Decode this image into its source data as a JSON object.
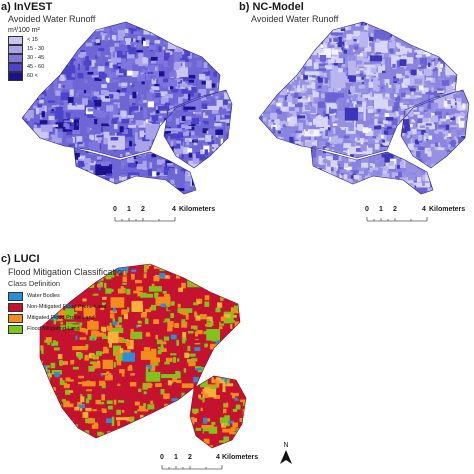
{
  "panel_a": {
    "letter": "a)",
    "title": "InVEST",
    "subtitle": "Avoided Water Runoff",
    "legend": {
      "unit": "m³/100 m²",
      "items": [
        {
          "label": "< 15",
          "color": "#c9c6f4"
        },
        {
          "label": "15 - 30",
          "color": "#a9a4ea"
        },
        {
          "label": "30 - 45",
          "color": "#7e76de"
        },
        {
          "label": "45 - 60",
          "color": "#4d43c9"
        },
        {
          "label": "60 <",
          "color": "#1c1290"
        }
      ]
    },
    "scalebar": {
      "ticks": [
        "0",
        "1",
        "2",
        "4"
      ],
      "unit": "Kilometers"
    }
  },
  "panel_b": {
    "letter": "b)",
    "title": "NC-Model",
    "subtitle": "Avoided Water Runoff",
    "scalebar": {
      "ticks": [
        "0",
        "1",
        "2",
        "4"
      ],
      "unit": "Kilometers"
    }
  },
  "panel_c": {
    "letter": "c)",
    "title": "LUCI",
    "subtitle": "Flood Mitigation Classification",
    "legend": {
      "heading": "Class Definition",
      "items": [
        {
          "label": "Water Bodies",
          "color": "#2a8fd6"
        },
        {
          "label": "Non-Mitigated Flood Prone Land",
          "color": "#c4122f"
        },
        {
          "label": "Mitigated Flood Prone Land",
          "color": "#f28c1d"
        },
        {
          "label": "Flood Mitigating Land",
          "color": "#7fc31c"
        }
      ]
    },
    "scalebar": {
      "ticks": [
        "0",
        "1",
        "2",
        "4"
      ],
      "unit": "Kilometers"
    },
    "north": "N"
  }
}
